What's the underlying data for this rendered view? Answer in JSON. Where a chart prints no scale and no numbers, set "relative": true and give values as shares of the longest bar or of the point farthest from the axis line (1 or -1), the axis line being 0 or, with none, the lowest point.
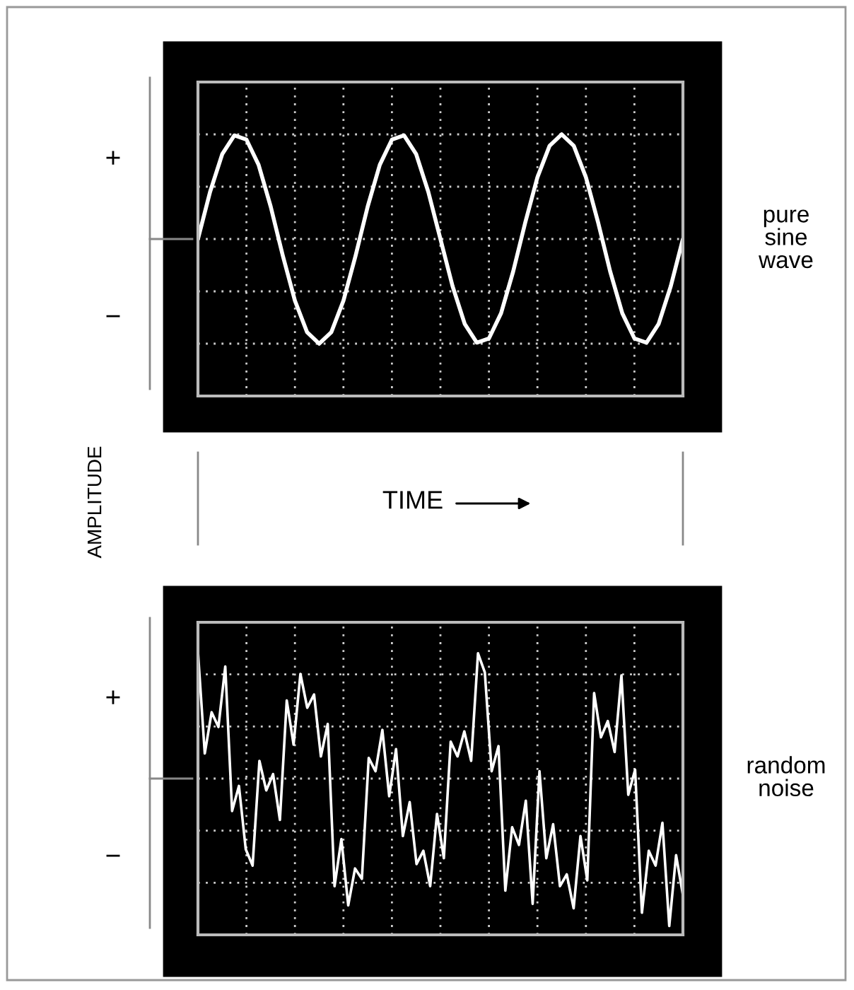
{
  "chart_data": [
    {
      "type": "line",
      "relative": true,
      "xlabel": "TIME",
      "ylabel": "AMPLITUDE",
      "grid": true,
      "tick_labels": false,
      "categories": [
        null,
        null,
        null,
        null,
        null,
        null,
        null,
        null,
        null,
        null,
        null,
        null,
        null,
        null,
        null,
        null,
        null,
        null,
        null,
        null,
        null,
        null,
        null,
        null,
        null,
        null,
        null,
        null,
        null,
        null,
        null,
        null,
        null,
        null,
        null,
        null,
        null,
        null,
        null,
        null,
        null
      ],
      "annotations": [
        "+",
        "−"
      ],
      "series": [
        {
          "name": "pure sine wave",
          "color": "#ffffff",
          "values": [
            0,
            0.45,
            0.81,
            0.99,
            0.95,
            0.71,
            0.31,
            -0.16,
            -0.59,
            -0.89,
            -1,
            -0.89,
            -0.59,
            -0.16,
            0.31,
            0.71,
            0.95,
            0.99,
            0.81,
            0.45,
            0,
            -0.45,
            -0.81,
            -0.99,
            -0.95,
            -0.71,
            -0.31,
            0.16,
            0.59,
            0.89,
            1,
            0.89,
            0.59,
            0.16,
            -0.31,
            -0.71,
            -0.95,
            -0.99,
            -0.81,
            -0.45,
            0
          ]
        }
      ]
    },
    {
      "type": "line",
      "relative": true,
      "grid": true,
      "tick_labels": false,
      "categories": [
        null,
        null,
        null,
        null,
        null,
        null,
        null,
        null,
        null,
        null,
        null,
        null,
        null,
        null,
        null,
        null,
        null,
        null,
        null,
        null,
        null,
        null,
        null,
        null,
        null,
        null,
        null,
        null,
        null,
        null,
        null,
        null,
        null,
        null,
        null,
        null,
        null,
        null,
        null,
        null,
        null,
        null,
        null,
        null,
        null,
        null,
        null,
        null,
        null,
        null,
        null,
        null,
        null,
        null,
        null,
        null,
        null,
        null,
        null,
        null,
        null,
        null,
        null,
        null,
        null,
        null,
        null,
        null,
        null,
        null,
        null,
        null
      ],
      "annotations": [
        "+",
        "−"
      ],
      "series": [
        {
          "name": "random noise",
          "color": "#ffffff",
          "values": [
            0.86,
            0.17,
            0.45,
            0.35,
            0.76,
            -0.22,
            -0.05,
            -0.48,
            -0.59,
            0.12,
            -0.08,
            0.03,
            -0.28,
            0.53,
            0.23,
            0.71,
            0.48,
            0.57,
            0.15,
            0.37,
            -0.73,
            -0.41,
            -0.86,
            -0.61,
            -0.68,
            0.14,
            0.05,
            0.33,
            -0.12,
            0.2,
            -0.39,
            -0.16,
            -0.58,
            -0.49,
            -0.73,
            -0.24,
            -0.54,
            0.25,
            0.15,
            0.32,
            0.12,
            0.85,
            0.72,
            0.05,
            0.22,
            -0.76,
            -0.33,
            -0.45,
            -0.15,
            -0.85,
            0.05,
            -0.54,
            -0.31,
            -0.73,
            -0.65,
            -0.88,
            -0.39,
            -0.69,
            0.58,
            0.28,
            0.39,
            0.18,
            0.7,
            -0.11,
            0.06,
            -0.91,
            -0.49,
            -0.59,
            -0.3,
            -1,
            -0.52,
            -0.79
          ]
        }
      ]
    }
  ]
}
